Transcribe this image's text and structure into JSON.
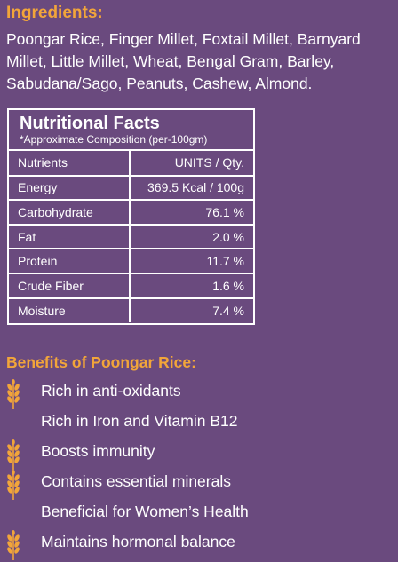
{
  "ingredients": {
    "title": "Ingredients:",
    "text": "Poongar Rice, Finger Millet, Foxtail Millet, Barnyard Millet, Little Millet, Wheat, Bengal Gram, Barley, Sabudana/Sago, Peanuts, Cashew, Almond."
  },
  "nutrition": {
    "title": "Nutritional Facts",
    "subtitle": "*Approximate Composition (per-100gm)",
    "rows": [
      {
        "label": "Nutrients",
        "value": "UNITS / Qty."
      },
      {
        "label": "Energy",
        "value": "369.5 Kcal / 100g"
      },
      {
        "label": "Carbohydrate",
        "value": "76.1 %"
      },
      {
        "label": "Fat",
        "value": "2.0 %"
      },
      {
        "label": "Protein",
        "value": "11.7 %"
      },
      {
        "label": "Crude Fiber",
        "value": "1.6 %"
      },
      {
        "label": "Moisture",
        "value": "7.4 %"
      }
    ]
  },
  "benefits": {
    "title": "Benefits of Poongar Rice:",
    "icon": "wheat-icon",
    "items": [
      "Rich in anti-oxidants",
      "Rich in Iron and Vitamin B12",
      "Boosts immunity",
      "Contains essential minerals",
      "Beneficial for Women’s Health",
      "Maintains hormonal balance"
    ]
  },
  "colors": {
    "background": "#6a4a7e",
    "accent": "#f2a53a",
    "text": "#ffffff"
  }
}
